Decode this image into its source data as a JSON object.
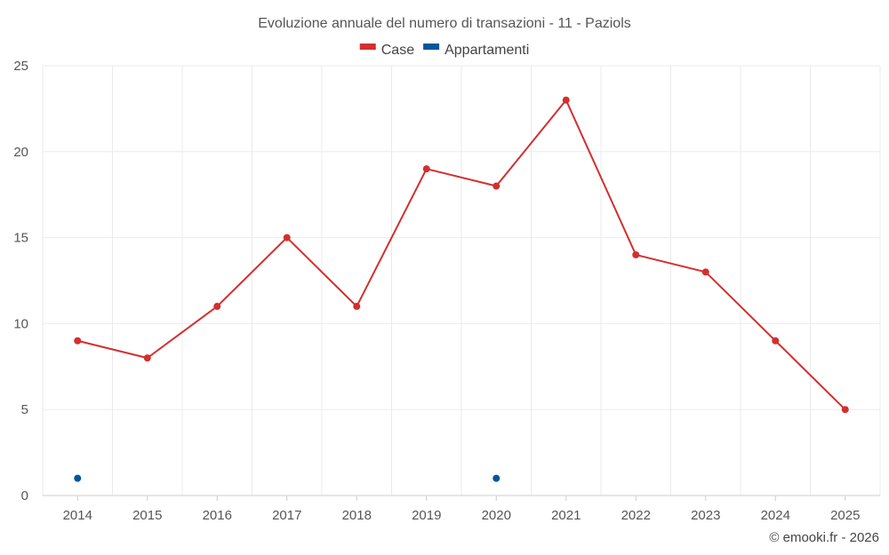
{
  "chart_data": {
    "type": "line",
    "title": "Evoluzione annuale del numero di transazioni - 11 - Paziols",
    "x": [
      "2014",
      "2015",
      "2016",
      "2017",
      "2018",
      "2019",
      "2020",
      "2021",
      "2022",
      "2023",
      "2024",
      "2025"
    ],
    "ylim": [
      0,
      25
    ],
    "yticks": [
      0,
      5,
      10,
      15,
      20,
      25
    ],
    "grid": true,
    "legend_position": "top-center",
    "series": [
      {
        "name": "Case",
        "color": "#d32f2f",
        "values": [
          9,
          8,
          11,
          15,
          11,
          19,
          18,
          23,
          14,
          13,
          9,
          5
        ]
      },
      {
        "name": "Appartamenti",
        "color": "#01579b",
        "values": [
          1,
          null,
          null,
          null,
          null,
          null,
          1,
          null,
          null,
          null,
          null,
          null
        ]
      }
    ]
  },
  "credit": "© emooki.fr - 2026"
}
